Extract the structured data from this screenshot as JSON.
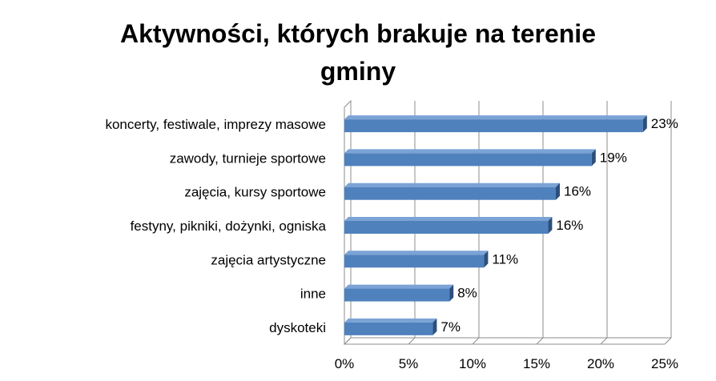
{
  "chart_data": {
    "type": "bar",
    "orientation": "horizontal",
    "title_lines": [
      "Aktywności, których brakuje na terenie",
      "gminy"
    ],
    "xlabel": "",
    "ylabel": "",
    "categories": [
      "koncerty, festiwale, imprezy masowe",
      "zawody, turnieje sportowe",
      "zajęcia, kursy sportowe",
      "festyny, pikniki, dożynki, ogniska",
      "zajęcia artystyczne",
      "inne",
      "dyskoteki"
    ],
    "values": [
      23.3,
      19.3,
      16.5,
      15.9,
      10.9,
      8.2,
      6.9
    ],
    "data_labels": [
      "23%",
      "19%",
      "16%",
      "16%",
      "11%",
      "8%",
      "7%"
    ],
    "xlim": [
      0,
      25
    ],
    "xticks": [
      0,
      5,
      10,
      15,
      20,
      25
    ],
    "xtick_labels": [
      "0%",
      "5%",
      "10%",
      "15%",
      "20%",
      "25%"
    ],
    "grid": true,
    "legend": "none",
    "style": "3d",
    "colors": {
      "bar_front": "#4f81bd",
      "bar_top": "#7ba3d6",
      "bar_side": "#2c4f7c",
      "grid": "#8c8c8c"
    }
  }
}
